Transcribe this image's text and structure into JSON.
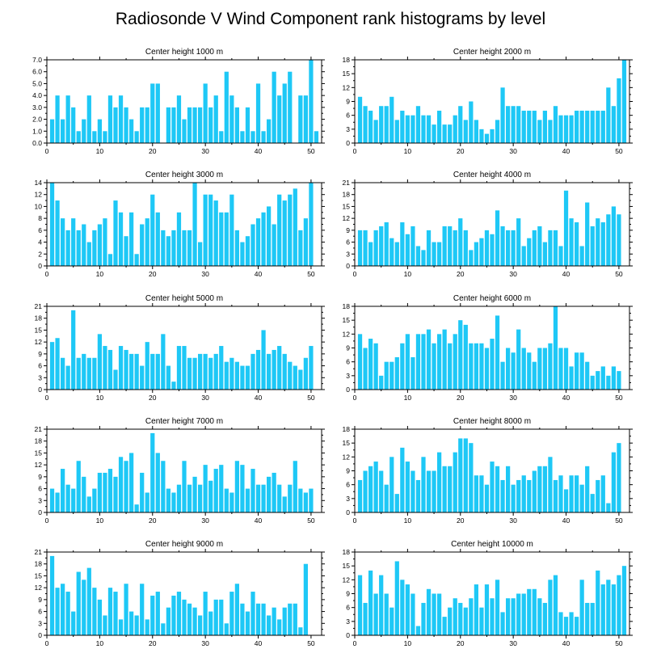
{
  "title": "Radiosonde V Wind Component rank histograms by level",
  "colors": {
    "bar": "#1ec8f6",
    "frame": "#000000",
    "background": "#ffffff"
  },
  "chart_data": [
    {
      "type": "bar",
      "title": "Center height 1000 m",
      "xlim": [
        0,
        52
      ],
      "ylim": [
        0,
        7
      ],
      "xticks": [
        0,
        10,
        20,
        30,
        40,
        50
      ],
      "yticks": [
        "0.0",
        "1.0",
        "2.0",
        "3.0",
        "4.0",
        "5.0",
        "6.0",
        "7.0"
      ],
      "x": [
        1,
        2,
        3,
        4,
        5,
        6,
        7,
        8,
        9,
        10,
        11,
        12,
        13,
        14,
        15,
        16,
        17,
        18,
        19,
        20,
        21,
        22,
        23,
        24,
        25,
        26,
        27,
        28,
        29,
        30,
        31,
        32,
        33,
        34,
        35,
        36,
        37,
        38,
        39,
        40,
        41,
        42,
        43,
        44,
        45,
        46,
        47,
        48,
        49,
        50,
        51
      ],
      "values": [
        2,
        4,
        2,
        4,
        3,
        1,
        2,
        4,
        1,
        2,
        1,
        4,
        3,
        4,
        3,
        2,
        1,
        3,
        3,
        5,
        5,
        0,
        3,
        3,
        4,
        2,
        3,
        3,
        3,
        5,
        3,
        4,
        1,
        6,
        4,
        3,
        1,
        3,
        1,
        5,
        1,
        2,
        6,
        4,
        5,
        6,
        0,
        4,
        4,
        7,
        1
      ]
    },
    {
      "type": "bar",
      "title": "Center height 2000 m",
      "xlim": [
        0,
        52
      ],
      "ylim": [
        0,
        18
      ],
      "xticks": [
        0,
        10,
        20,
        30,
        40,
        50
      ],
      "yticks": [
        "0",
        "3",
        "6",
        "9",
        "12",
        "15",
        "18"
      ],
      "x": [
        1,
        2,
        3,
        4,
        5,
        6,
        7,
        8,
        9,
        10,
        11,
        12,
        13,
        14,
        15,
        16,
        17,
        18,
        19,
        20,
        21,
        22,
        23,
        24,
        25,
        26,
        27,
        28,
        29,
        30,
        31,
        32,
        33,
        34,
        35,
        36,
        37,
        38,
        39,
        40,
        41,
        42,
        43,
        44,
        45,
        46,
        47,
        48,
        49,
        50,
        51
      ],
      "values": [
        10,
        8,
        7,
        5,
        8,
        8,
        10,
        5,
        7,
        6,
        6,
        8,
        6,
        6,
        4,
        7,
        4,
        4,
        6,
        8,
        5,
        9,
        5,
        3,
        2,
        3,
        5,
        12,
        8,
        8,
        8,
        7,
        7,
        7,
        5,
        7,
        5,
        8,
        6,
        6,
        6,
        7,
        7,
        7,
        7,
        7,
        7,
        12,
        8,
        14,
        18
      ]
    },
    {
      "type": "bar",
      "title": "Center height 3000 m",
      "xlim": [
        0,
        52
      ],
      "ylim": [
        0,
        14
      ],
      "xticks": [
        0,
        10,
        20,
        30,
        40,
        50
      ],
      "yticks": [
        "0",
        "2",
        "4",
        "6",
        "8",
        "10",
        "12",
        "14"
      ],
      "x": [
        1,
        2,
        3,
        4,
        5,
        6,
        7,
        8,
        9,
        10,
        11,
        12,
        13,
        14,
        15,
        16,
        17,
        18,
        19,
        20,
        21,
        22,
        23,
        24,
        25,
        26,
        27,
        28,
        29,
        30,
        31,
        32,
        33,
        34,
        35,
        36,
        37,
        38,
        39,
        40,
        41,
        42,
        43,
        44,
        45,
        46,
        47,
        48,
        49,
        50,
        51
      ],
      "values": [
        14,
        11,
        8,
        6,
        8,
        6,
        7,
        4,
        6,
        7,
        8,
        2,
        11,
        9,
        5,
        9,
        2,
        7,
        8,
        12,
        9,
        6,
        5,
        6,
        9,
        6,
        6,
        14,
        4,
        12,
        12,
        11,
        9,
        9,
        12,
        6,
        4,
        5,
        7,
        8,
        9,
        10,
        7,
        12,
        11,
        12,
        13,
        6,
        8,
        14,
        0
      ]
    },
    {
      "type": "bar",
      "title": "Center height 4000 m",
      "xlim": [
        0,
        52
      ],
      "ylim": [
        0,
        21
      ],
      "xticks": [
        0,
        10,
        20,
        30,
        40,
        50
      ],
      "yticks": [
        "0",
        "3",
        "6",
        "9",
        "12",
        "15",
        "18",
        "21"
      ],
      "x": [
        1,
        2,
        3,
        4,
        5,
        6,
        7,
        8,
        9,
        10,
        11,
        12,
        13,
        14,
        15,
        16,
        17,
        18,
        19,
        20,
        21,
        22,
        23,
        24,
        25,
        26,
        27,
        28,
        29,
        30,
        31,
        32,
        33,
        34,
        35,
        36,
        37,
        38,
        39,
        40,
        41,
        42,
        43,
        44,
        45,
        46,
        47,
        48,
        49,
        50,
        51
      ],
      "values": [
        9,
        9,
        6,
        9,
        10,
        11,
        7,
        6,
        11,
        8,
        10,
        5,
        4,
        9,
        6,
        6,
        10,
        10,
        9,
        12,
        9,
        4,
        6,
        7,
        9,
        8,
        14,
        10,
        9,
        9,
        12,
        5,
        7,
        9,
        10,
        6,
        9,
        9,
        5,
        19,
        12,
        11,
        5,
        16,
        10,
        12,
        11,
        13,
        15,
        13,
        0
      ]
    },
    {
      "type": "bar",
      "title": "Center height 5000 m",
      "xlim": [
        0,
        52
      ],
      "ylim": [
        0,
        21
      ],
      "xticks": [
        0,
        10,
        20,
        30,
        40,
        50
      ],
      "yticks": [
        "0",
        "3",
        "6",
        "9",
        "12",
        "15",
        "18",
        "21"
      ],
      "x": [
        1,
        2,
        3,
        4,
        5,
        6,
        7,
        8,
        9,
        10,
        11,
        12,
        13,
        14,
        15,
        16,
        17,
        18,
        19,
        20,
        21,
        22,
        23,
        24,
        25,
        26,
        27,
        28,
        29,
        30,
        31,
        32,
        33,
        34,
        35,
        36,
        37,
        38,
        39,
        40,
        41,
        42,
        43,
        44,
        45,
        46,
        47,
        48,
        49,
        50,
        51
      ],
      "values": [
        12,
        13,
        8,
        6,
        20,
        8,
        9,
        8,
        8,
        14,
        11,
        10,
        5,
        11,
        10,
        9,
        9,
        6,
        12,
        9,
        9,
        14,
        6,
        2,
        11,
        11,
        8,
        8,
        9,
        9,
        8,
        9,
        11,
        7,
        8,
        7,
        6,
        6,
        9,
        10,
        15,
        9,
        10,
        11,
        9,
        7,
        6,
        5,
        8,
        11,
        0
      ]
    },
    {
      "type": "bar",
      "title": "Center height 6000 m",
      "xlim": [
        0,
        52
      ],
      "ylim": [
        0,
        18
      ],
      "xticks": [
        0,
        10,
        20,
        30,
        40,
        50
      ],
      "yticks": [
        "0",
        "3",
        "6",
        "9",
        "12",
        "15",
        "18"
      ],
      "x": [
        1,
        2,
        3,
        4,
        5,
        6,
        7,
        8,
        9,
        10,
        11,
        12,
        13,
        14,
        15,
        16,
        17,
        18,
        19,
        20,
        21,
        22,
        23,
        24,
        25,
        26,
        27,
        28,
        29,
        30,
        31,
        32,
        33,
        34,
        35,
        36,
        37,
        38,
        39,
        40,
        41,
        42,
        43,
        44,
        45,
        46,
        47,
        48,
        49,
        50,
        51
      ],
      "values": [
        12,
        9,
        11,
        10,
        3,
        6,
        6,
        7,
        10,
        12,
        7,
        12,
        12,
        13,
        10,
        12,
        13,
        10,
        12,
        15,
        14,
        10,
        10,
        10,
        9,
        11,
        16,
        6,
        9,
        8,
        13,
        9,
        8,
        6,
        9,
        9,
        10,
        18,
        9,
        9,
        5,
        8,
        8,
        6,
        3,
        4,
        5,
        3,
        5,
        4,
        0
      ]
    },
    {
      "type": "bar",
      "title": "Center height 7000 m",
      "xlim": [
        0,
        52
      ],
      "ylim": [
        0,
        21
      ],
      "xticks": [
        0,
        10,
        20,
        30,
        40,
        50
      ],
      "yticks": [
        "0",
        "3",
        "6",
        "9",
        "12",
        "15",
        "18",
        "21"
      ],
      "x": [
        1,
        2,
        3,
        4,
        5,
        6,
        7,
        8,
        9,
        10,
        11,
        12,
        13,
        14,
        15,
        16,
        17,
        18,
        19,
        20,
        21,
        22,
        23,
        24,
        25,
        26,
        27,
        28,
        29,
        30,
        31,
        32,
        33,
        34,
        35,
        36,
        37,
        38,
        39,
        40,
        41,
        42,
        43,
        44,
        45,
        46,
        47,
        48,
        49,
        50,
        51
      ],
      "values": [
        6,
        5,
        11,
        7,
        6,
        13,
        9,
        4,
        6,
        10,
        10,
        11,
        9,
        14,
        13,
        15,
        2,
        10,
        5,
        20,
        15,
        13,
        6,
        5,
        7,
        13,
        7,
        9,
        7,
        12,
        8,
        11,
        12,
        6,
        5,
        13,
        12,
        6,
        11,
        7,
        7,
        9,
        10,
        7,
        4,
        7,
        13,
        6,
        5,
        6,
        0
      ]
    },
    {
      "type": "bar",
      "title": "Center height 8000 m",
      "xlim": [
        0,
        52
      ],
      "ylim": [
        0,
        18
      ],
      "xticks": [
        0,
        10,
        20,
        30,
        40,
        50
      ],
      "yticks": [
        "0",
        "3",
        "6",
        "9",
        "12",
        "15",
        "18"
      ],
      "x": [
        1,
        2,
        3,
        4,
        5,
        6,
        7,
        8,
        9,
        10,
        11,
        12,
        13,
        14,
        15,
        16,
        17,
        18,
        19,
        20,
        21,
        22,
        23,
        24,
        25,
        26,
        27,
        28,
        29,
        30,
        31,
        32,
        33,
        34,
        35,
        36,
        37,
        38,
        39,
        40,
        41,
        42,
        43,
        44,
        45,
        46,
        47,
        48,
        49,
        50,
        51
      ],
      "values": [
        7,
        9,
        10,
        11,
        9,
        6,
        12,
        4,
        14,
        11,
        9,
        7,
        12,
        9,
        9,
        13,
        10,
        10,
        13,
        16,
        16,
        15,
        8,
        8,
        6,
        11,
        10,
        7,
        10,
        6,
        7,
        8,
        7,
        9,
        10,
        10,
        12,
        7,
        8,
        5,
        8,
        8,
        6,
        10,
        4,
        7,
        8,
        2,
        13,
        15,
        0
      ]
    },
    {
      "type": "bar",
      "title": "Center height 9000 m",
      "xlim": [
        0,
        52
      ],
      "ylim": [
        0,
        21
      ],
      "xticks": [
        0,
        10,
        20,
        30,
        40,
        50
      ],
      "yticks": [
        "0",
        "3",
        "6",
        "9",
        "12",
        "15",
        "18",
        "21"
      ],
      "x": [
        1,
        2,
        3,
        4,
        5,
        6,
        7,
        8,
        9,
        10,
        11,
        12,
        13,
        14,
        15,
        16,
        17,
        18,
        19,
        20,
        21,
        22,
        23,
        24,
        25,
        26,
        27,
        28,
        29,
        30,
        31,
        32,
        33,
        34,
        35,
        36,
        37,
        38,
        39,
        40,
        41,
        42,
        43,
        44,
        45,
        46,
        47,
        48,
        49,
        50,
        51
      ],
      "values": [
        20,
        12,
        13,
        11,
        6,
        16,
        14,
        17,
        12,
        9,
        5,
        12,
        11,
        4,
        13,
        6,
        5,
        13,
        4,
        10,
        11,
        3,
        7,
        10,
        11,
        9,
        8,
        7,
        5,
        11,
        6,
        9,
        9,
        3,
        11,
        13,
        8,
        6,
        11,
        8,
        8,
        5,
        7,
        4,
        7,
        8,
        8,
        2,
        18,
        0,
        0
      ]
    },
    {
      "type": "bar",
      "title": "Center height 10000 m",
      "xlim": [
        0,
        52
      ],
      "ylim": [
        0,
        18
      ],
      "xticks": [
        0,
        10,
        20,
        30,
        40,
        50
      ],
      "yticks": [
        "0",
        "3",
        "6",
        "9",
        "12",
        "15",
        "18"
      ],
      "x": [
        1,
        2,
        3,
        4,
        5,
        6,
        7,
        8,
        9,
        10,
        11,
        12,
        13,
        14,
        15,
        16,
        17,
        18,
        19,
        20,
        21,
        22,
        23,
        24,
        25,
        26,
        27,
        28,
        29,
        30,
        31,
        32,
        33,
        34,
        35,
        36,
        37,
        38,
        39,
        40,
        41,
        42,
        43,
        44,
        45,
        46,
        47,
        48,
        49,
        50,
        51
      ],
      "values": [
        13,
        7,
        14,
        9,
        13,
        9,
        6,
        16,
        12,
        11,
        9,
        2,
        7,
        10,
        9,
        9,
        4,
        6,
        8,
        7,
        6,
        8,
        11,
        6,
        11,
        8,
        12,
        5,
        8,
        8,
        9,
        9,
        10,
        10,
        8,
        7,
        12,
        13,
        5,
        4,
        5,
        4,
        12,
        7,
        7,
        14,
        11,
        12,
        11,
        13,
        15
      ]
    }
  ]
}
